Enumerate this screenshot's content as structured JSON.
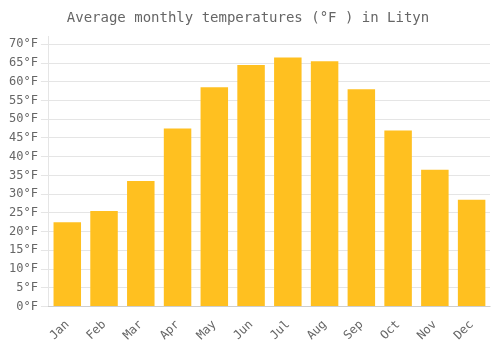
{
  "chart_data": {
    "type": "bar",
    "title": "Average monthly temperatures (°F ) in Lityn",
    "categories": [
      "Jan",
      "Feb",
      "Mar",
      "Apr",
      "May",
      "Jun",
      "Jul",
      "Aug",
      "Sep",
      "Oct",
      "Nov",
      "Dec"
    ],
    "values": [
      22.5,
      25.5,
      33.5,
      47.5,
      58.5,
      64.5,
      66.5,
      65.5,
      58.0,
      47.0,
      36.5,
      28.5
    ],
    "color": "#FFC020",
    "ylim": [
      0,
      72
    ],
    "yticks": [
      {
        "value": 0,
        "label": "0°F"
      },
      {
        "value": 5,
        "label": "5°F"
      },
      {
        "value": 10,
        "label": "10°F"
      },
      {
        "value": 15,
        "label": "15°F"
      },
      {
        "value": 20,
        "label": "20°F"
      },
      {
        "value": 25,
        "label": "25°F"
      },
      {
        "value": 30,
        "label": "30°F"
      },
      {
        "value": 35,
        "label": "35°F"
      },
      {
        "value": 40,
        "label": "40°F"
      },
      {
        "value": 45,
        "label": "45°F"
      },
      {
        "value": 50,
        "label": "50°F"
      },
      {
        "value": 55,
        "label": "55°F"
      },
      {
        "value": 60,
        "label": "60°F"
      },
      {
        "value": 65,
        "label": "65°F"
      },
      {
        "value": 70,
        "label": "70°F"
      }
    ],
    "grid": true
  }
}
